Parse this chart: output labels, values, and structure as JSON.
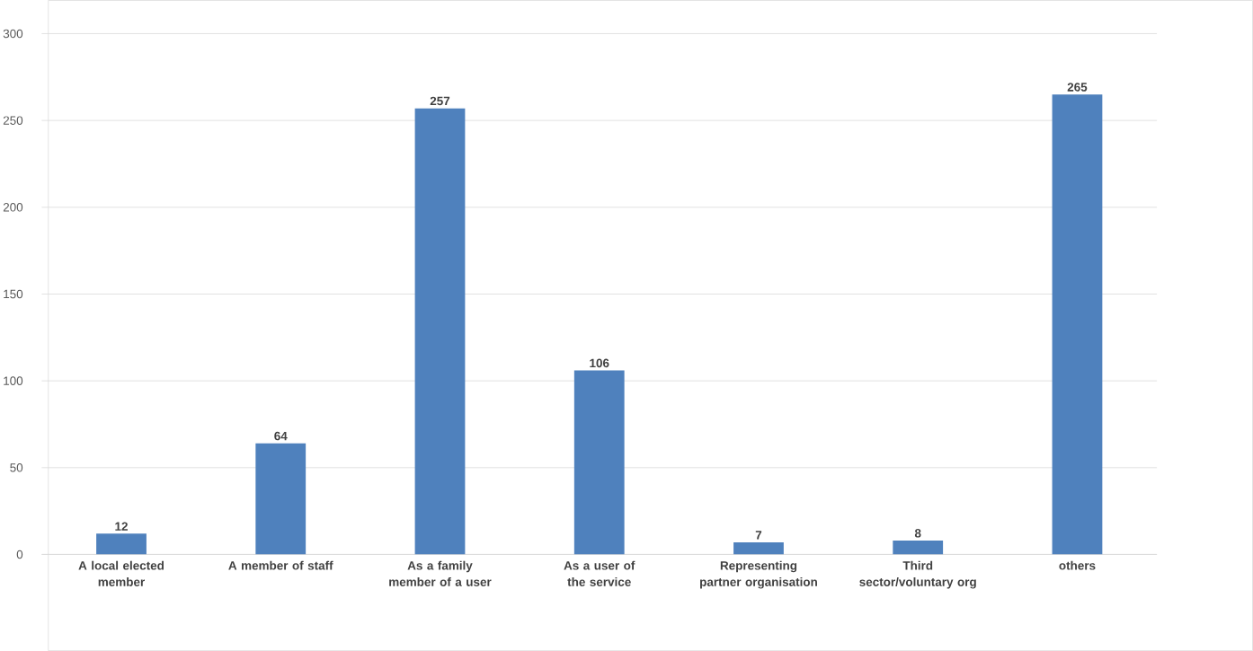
{
  "chart_data": {
    "type": "bar",
    "categories": [
      "A local elected member",
      "A member of staff",
      "As a family member of a user",
      "As a user of the service",
      "Representing partner organisation",
      "Third sector/voluntary org",
      "others"
    ],
    "values": [
      12,
      64,
      257,
      106,
      7,
      8,
      265
    ],
    "color": "#4f81bd",
    "ylim": [
      0,
      300
    ],
    "yticks": [
      0,
      50,
      100,
      150,
      200,
      250,
      300
    ],
    "grid": "y",
    "data_labels": true
  }
}
